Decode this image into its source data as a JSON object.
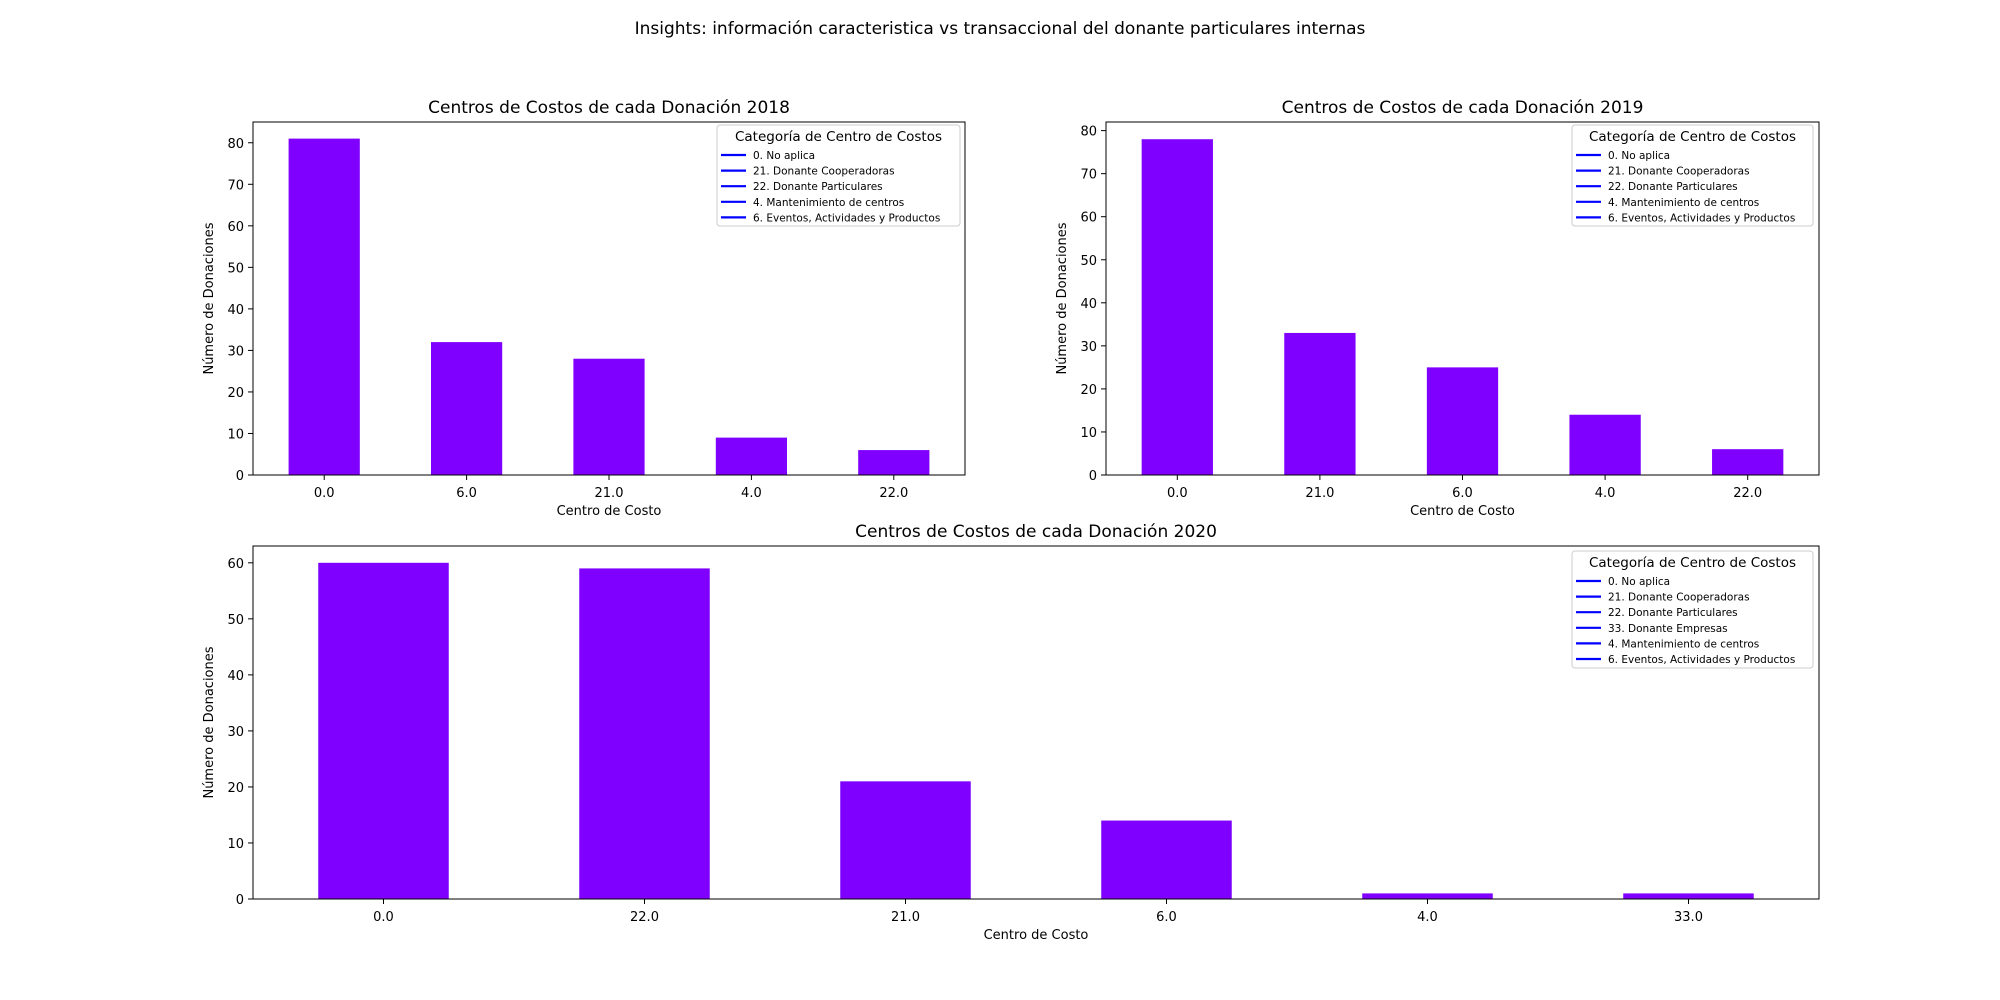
{
  "figure": {
    "suptitle": "Insights: información caracteristica vs transaccional del donante particulares internas"
  },
  "colors": {
    "bar": "#7f00ff",
    "legend_line": "#0000ff"
  },
  "chart_data": [
    {
      "type": "bar",
      "title": "Centros de Costos de cada Donación 2018",
      "xlabel": "Centro de Costo",
      "ylabel": "Número de Donaciones",
      "categories": [
        "0.0",
        "6.0",
        "21.0",
        "4.0",
        "22.0"
      ],
      "values": [
        81,
        32,
        28,
        9,
        6
      ],
      "ylim": [
        0,
        85
      ],
      "yticks": [
        0,
        10,
        20,
        30,
        40,
        50,
        60,
        70,
        80
      ],
      "grid": false,
      "legend_position": "top-right",
      "legend": {
        "title": "Categoría de Centro de Costos",
        "entries": [
          "0. No aplica",
          "21. Donante Cooperadoras",
          "22. Donante Particulares",
          "4. Mantenimiento de centros",
          "6. Eventos, Actividades y Productos"
        ]
      }
    },
    {
      "type": "bar",
      "title": "Centros de Costos de cada Donación 2019",
      "xlabel": "Centro de Costo",
      "ylabel": "Número de Donaciones",
      "categories": [
        "0.0",
        "21.0",
        "6.0",
        "4.0",
        "22.0"
      ],
      "values": [
        78,
        33,
        25,
        14,
        6
      ],
      "ylim": [
        0,
        82
      ],
      "yticks": [
        0,
        10,
        20,
        30,
        40,
        50,
        60,
        70,
        80
      ],
      "grid": false,
      "legend_position": "top-right",
      "legend": {
        "title": "Categoría de Centro de Costos",
        "entries": [
          "0. No aplica",
          "21. Donante Cooperadoras",
          "22. Donante Particulares",
          "4. Mantenimiento de centros",
          "6. Eventos, Actividades y Productos"
        ]
      }
    },
    {
      "type": "bar",
      "title": "Centros de Costos de cada Donación 2020",
      "xlabel": "Centro de Costo",
      "ylabel": "Número de Donaciones",
      "categories": [
        "0.0",
        "22.0",
        "21.0",
        "6.0",
        "4.0",
        "33.0"
      ],
      "values": [
        60,
        59,
        21,
        14,
        1,
        1
      ],
      "ylim": [
        0,
        63
      ],
      "yticks": [
        0,
        10,
        20,
        30,
        40,
        50,
        60
      ],
      "grid": false,
      "legend_position": "top-right",
      "legend": {
        "title": "Categoría de Centro de Costos",
        "entries": [
          "0. No aplica",
          "21. Donante Cooperadoras",
          "22. Donante Particulares",
          "33. Donante Empresas",
          "4. Mantenimiento de centros",
          "6. Eventos, Actividades y Productos"
        ]
      }
    }
  ]
}
